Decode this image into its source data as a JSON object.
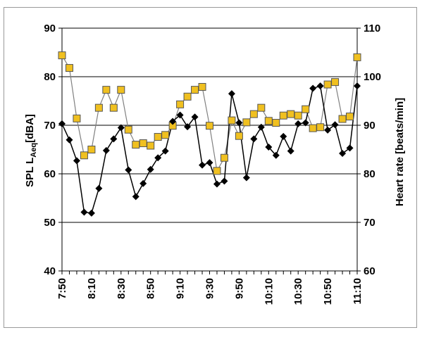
{
  "chart_data": {
    "type": "line",
    "title": "",
    "xlabel": "",
    "ylabel_left": {
      "main": "SPL L",
      "sub": "Aeq",
      "unit": "[dBA]"
    },
    "ylabel_right": "Heart rate [beats/min]",
    "ylim_left": [
      40,
      90
    ],
    "ylim_right": [
      60,
      110
    ],
    "yticks_left": [
      "40",
      "50",
      "60",
      "70",
      "80",
      "90"
    ],
    "yticks_right": [
      "60",
      "70",
      "80",
      "90",
      "100",
      "110"
    ],
    "gridlines": "horizontal",
    "legend": "none",
    "x_tick_labels": [
      "7:50",
      "8:10",
      "8:30",
      "8:50",
      "9:10",
      "9:30",
      "9:50",
      "10:10",
      "10:30",
      "10:50",
      "11:10"
    ],
    "x_range_minutes": [
      470,
      670
    ],
    "series": [
      {
        "axis": "left",
        "marker": "diamond",
        "color": "#000000",
        "line_color": "#000000",
        "x_minutes": [
          470,
          475,
          480,
          485,
          490,
          495,
          500,
          505,
          510,
          515,
          520,
          525,
          530,
          535,
          540,
          545,
          550,
          555,
          560,
          565,
          570,
          575,
          580,
          585,
          590,
          595,
          600,
          605,
          610,
          615,
          620,
          625,
          630,
          635,
          640,
          645,
          650,
          655,
          660,
          665,
          670
        ],
        "values": [
          70.3,
          67.0,
          62.7,
          52.1,
          51.9,
          57.0,
          64.8,
          67.2,
          69.5,
          60.8,
          55.3,
          58.0,
          60.9,
          63.3,
          64.7,
          70.8,
          72.1,
          69.7,
          71.7,
          61.8,
          62.3,
          57.9,
          58.5,
          76.5,
          70.5,
          59.2,
          67.2,
          69.6,
          65.5,
          63.8,
          67.7,
          64.7,
          70.3,
          70.5,
          77.6,
          78.1,
          69.0,
          70.1,
          64.2,
          65.3,
          78.1
        ]
      },
      {
        "axis": "right",
        "marker": "square",
        "color": "#f0c020",
        "line_color": "#808080",
        "x_minutes": [
          470,
          475,
          480,
          485,
          490,
          495,
          500,
          505,
          510,
          515,
          520,
          525,
          530,
          535,
          540,
          545,
          550,
          555,
          560,
          565,
          570,
          575,
          580,
          585,
          590,
          595,
          600,
          605,
          610,
          615,
          620,
          625,
          630,
          635,
          640,
          645,
          650,
          655,
          660,
          665,
          670
        ],
        "values": [
          104.4,
          101.8,
          91.4,
          83.8,
          85.0,
          93.6,
          97.3,
          93.6,
          97.3,
          89.1,
          86.0,
          86.3,
          85.8,
          87.6,
          88.0,
          89.9,
          94.3,
          95.9,
          97.3,
          97.9,
          89.9,
          80.6,
          83.3,
          91.0,
          87.8,
          90.6,
          92.3,
          93.6,
          90.9,
          90.5,
          92.0,
          92.3,
          92.0,
          93.3,
          89.4,
          89.6,
          98.4,
          98.9,
          91.3,
          91.8,
          104.0
        ]
      }
    ]
  }
}
